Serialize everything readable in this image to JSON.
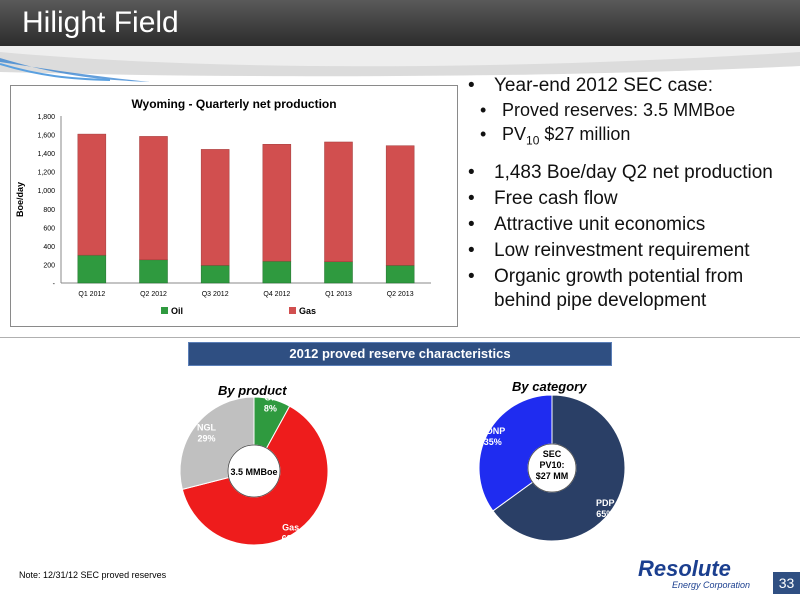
{
  "slide": {
    "title": "Hilight Field",
    "page_number": "33",
    "note": "Note:  12/31/12 SEC proved reserves"
  },
  "logo": {
    "name": "Resolute",
    "tagline": "Energy Corporation"
  },
  "bullets": {
    "b1": "Year-end 2012 SEC case:",
    "b1a": "Proved reserves:  3.5 MMBoe",
    "b1b_pre": "PV",
    "b1b_sub": "10",
    "b1b_post": " $27 million",
    "b2": "1,483 Boe/day Q2 net production",
    "b3": "Free cash flow",
    "b4": "Attractive unit economics",
    "b5": "Low reinvestment requirement",
    "b6": "Organic growth potential from behind pipe development"
  },
  "section_banner": "2012 proved reserve characteristics",
  "colors": {
    "oil": "#2f9a3f",
    "gas": "#d14f4f",
    "gas_pie": "#ee1c1c",
    "ngl": "#c0c0c0",
    "pdnp": "#1f2cf0",
    "pdp": "#2a3f66",
    "banner": "#2f4f82"
  },
  "chart_data": [
    {
      "type": "bar",
      "stacked": true,
      "title": "Wyoming - Quarterly net production",
      "ylabel": "Boe/day",
      "xlabel": "",
      "categories": [
        "Q1 2012",
        "Q2 2012",
        "Q3 2012",
        "Q4 2012",
        "Q1 2013",
        "Q2 2013"
      ],
      "ylim": [
        0,
        1800
      ],
      "yticks": [
        0,
        200,
        400,
        600,
        800,
        1000,
        1200,
        1400,
        1600,
        1800
      ],
      "ytick_labels": [
        "-",
        "200",
        "400",
        "600",
        "800",
        "1,000",
        "1,200",
        "1,400",
        "1,600",
        "1,800"
      ],
      "series": [
        {
          "name": "Oil",
          "values": [
            300,
            250,
            190,
            235,
            230,
            190
          ]
        },
        {
          "name": "Gas",
          "values": [
            1305,
            1330,
            1250,
            1260,
            1290,
            1290
          ]
        }
      ],
      "legend": "bottom",
      "grid": false
    },
    {
      "type": "pie",
      "donut": true,
      "title": "By product",
      "center_label": "3.5 MMBoe",
      "slices": [
        {
          "name": "Oil",
          "value": 8,
          "label": "8%"
        },
        {
          "name": "Gas",
          "value": 63,
          "label": "63%"
        },
        {
          "name": "NGL",
          "value": 29,
          "label": "29%"
        }
      ]
    },
    {
      "type": "pie",
      "donut": true,
      "title": "By category",
      "center_label": [
        "SEC",
        "PV10:",
        "$27 MM"
      ],
      "slices": [
        {
          "name": "PDP",
          "value": 65,
          "label": "65%"
        },
        {
          "name": "PDNP",
          "value": 35,
          "label": "35%"
        }
      ]
    }
  ]
}
